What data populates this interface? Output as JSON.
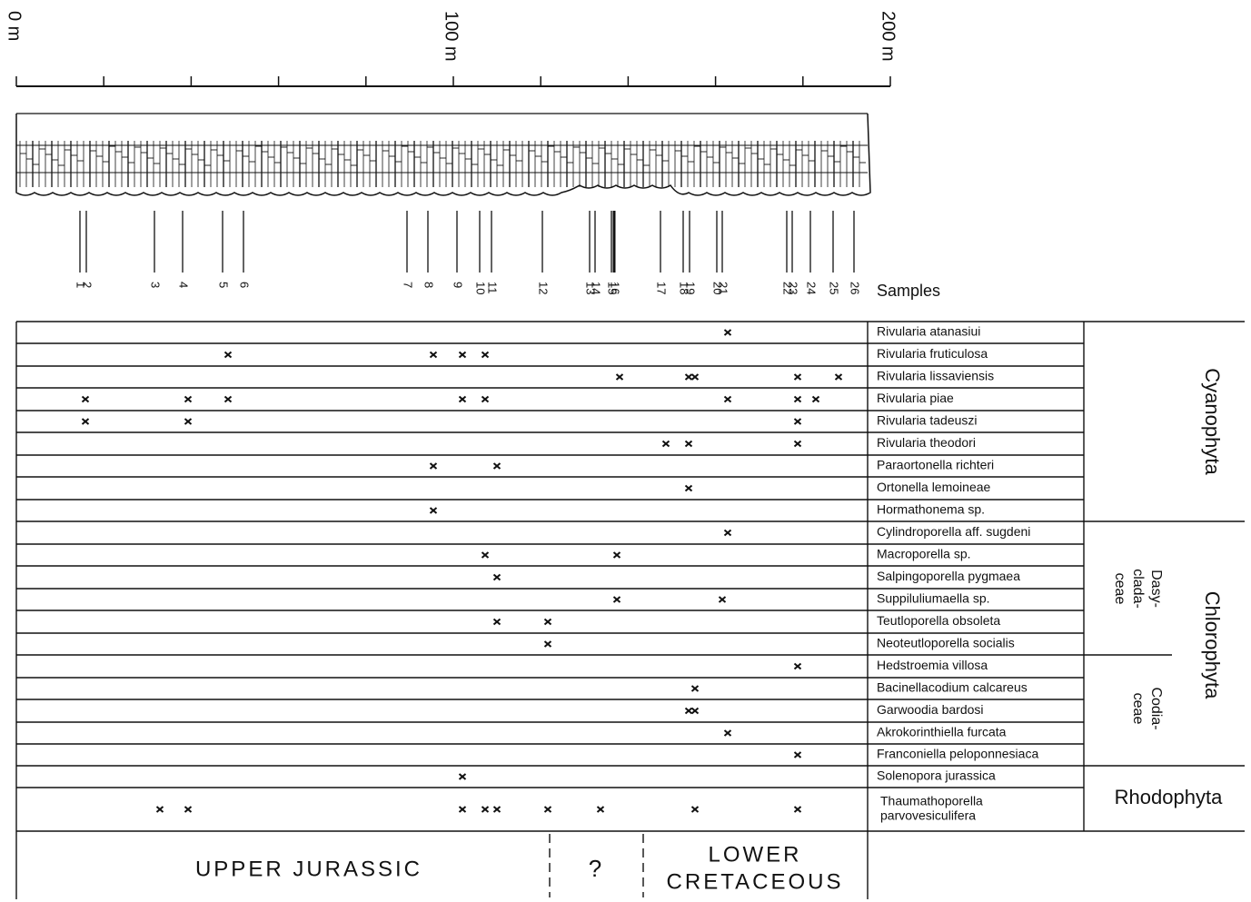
{
  "scale": {
    "labels": [
      "0 m",
      "100 m",
      "200 m"
    ]
  },
  "samples": {
    "title": "Samples",
    "labels": [
      "1",
      "2",
      "3",
      "4",
      "5",
      "6",
      "7",
      "8",
      "9",
      "10",
      "11",
      "12",
      "13",
      "14",
      "15",
      "16",
      "17",
      "18",
      "19",
      "20",
      "21",
      "22",
      "23",
      "24",
      "25",
      "26"
    ]
  },
  "taxa": [
    {
      "name": "Rivularia atanasiui",
      "occurrences": [
        "21"
      ]
    },
    {
      "name": "Rivularia fruticulosa",
      "occurrences": [
        "5",
        "8",
        "9",
        "10"
      ]
    },
    {
      "name": "Rivularia lissaviensis",
      "occurrences": [
        "16",
        "18",
        "19",
        "23",
        "25"
      ]
    },
    {
      "name": "Rivularia piae",
      "occurrences": [
        "1",
        "4",
        "5",
        "9",
        "10",
        "21",
        "23",
        "24"
      ]
    },
    {
      "name": "Rivularia tadeuszi",
      "occurrences": [
        "1",
        "4",
        "23"
      ]
    },
    {
      "name": "Rivularia theodori",
      "occurrences": [
        "17",
        "18",
        "23"
      ]
    },
    {
      "name": "Paraortonella richteri",
      "occurrences": [
        "8",
        "11"
      ]
    },
    {
      "name": "Ortonella lemoineae",
      "occurrences": [
        "18"
      ]
    },
    {
      "name": "Hormathonema sp.",
      "occurrences": [
        "8"
      ]
    },
    {
      "name": "Cylindroporella aff. sugdeni",
      "occurrences": [
        "21"
      ]
    },
    {
      "name": "Macroporella sp.",
      "occurrences": [
        "10",
        "15"
      ]
    },
    {
      "name": "Salpingoporella pygmaea",
      "occurrences": [
        "11"
      ]
    },
    {
      "name": "Suppiluliumaella sp.",
      "occurrences": [
        "15",
        "20"
      ]
    },
    {
      "name": "Teutloporella obsoleta",
      "occurrences": [
        "11",
        "12"
      ]
    },
    {
      "name": "Neoteutloporella socialis",
      "occurrences": [
        "12"
      ]
    },
    {
      "name": "Hedstroemia villosa",
      "occurrences": [
        "23"
      ]
    },
    {
      "name": "Bacinellacodium calcareus",
      "occurrences": [
        "19"
      ]
    },
    {
      "name": "Garwoodia bardosi",
      "occurrences": [
        "18",
        "19"
      ]
    },
    {
      "name": "Akrokorinthiella furcata",
      "occurrences": [
        "21"
      ]
    },
    {
      "name": "Franconiella peloponnesiaca",
      "occurrences": [
        "23"
      ]
    },
    {
      "name": "Solenopora jurassica",
      "occurrences": [
        "9"
      ]
    },
    {
      "name": [
        "Thaumathoporella",
        "parvovesiculifera"
      ],
      "occurrences": [
        "3",
        "4",
        "9",
        "10",
        "11",
        "12",
        "14",
        "19",
        "23"
      ]
    }
  ],
  "groups": [
    "Cyanophyta",
    "Chlorophyta",
    "Rhodophyta"
  ],
  "subgroups": [
    [
      "Dasy-",
      "clada-",
      "ceae"
    ],
    [
      "Codia-",
      "ceae"
    ]
  ],
  "ages": {
    "upper": "UPPER JURASSIC",
    "uncertain": "?",
    "lower": [
      "LOWER",
      "CRETACEOUS"
    ]
  }
}
